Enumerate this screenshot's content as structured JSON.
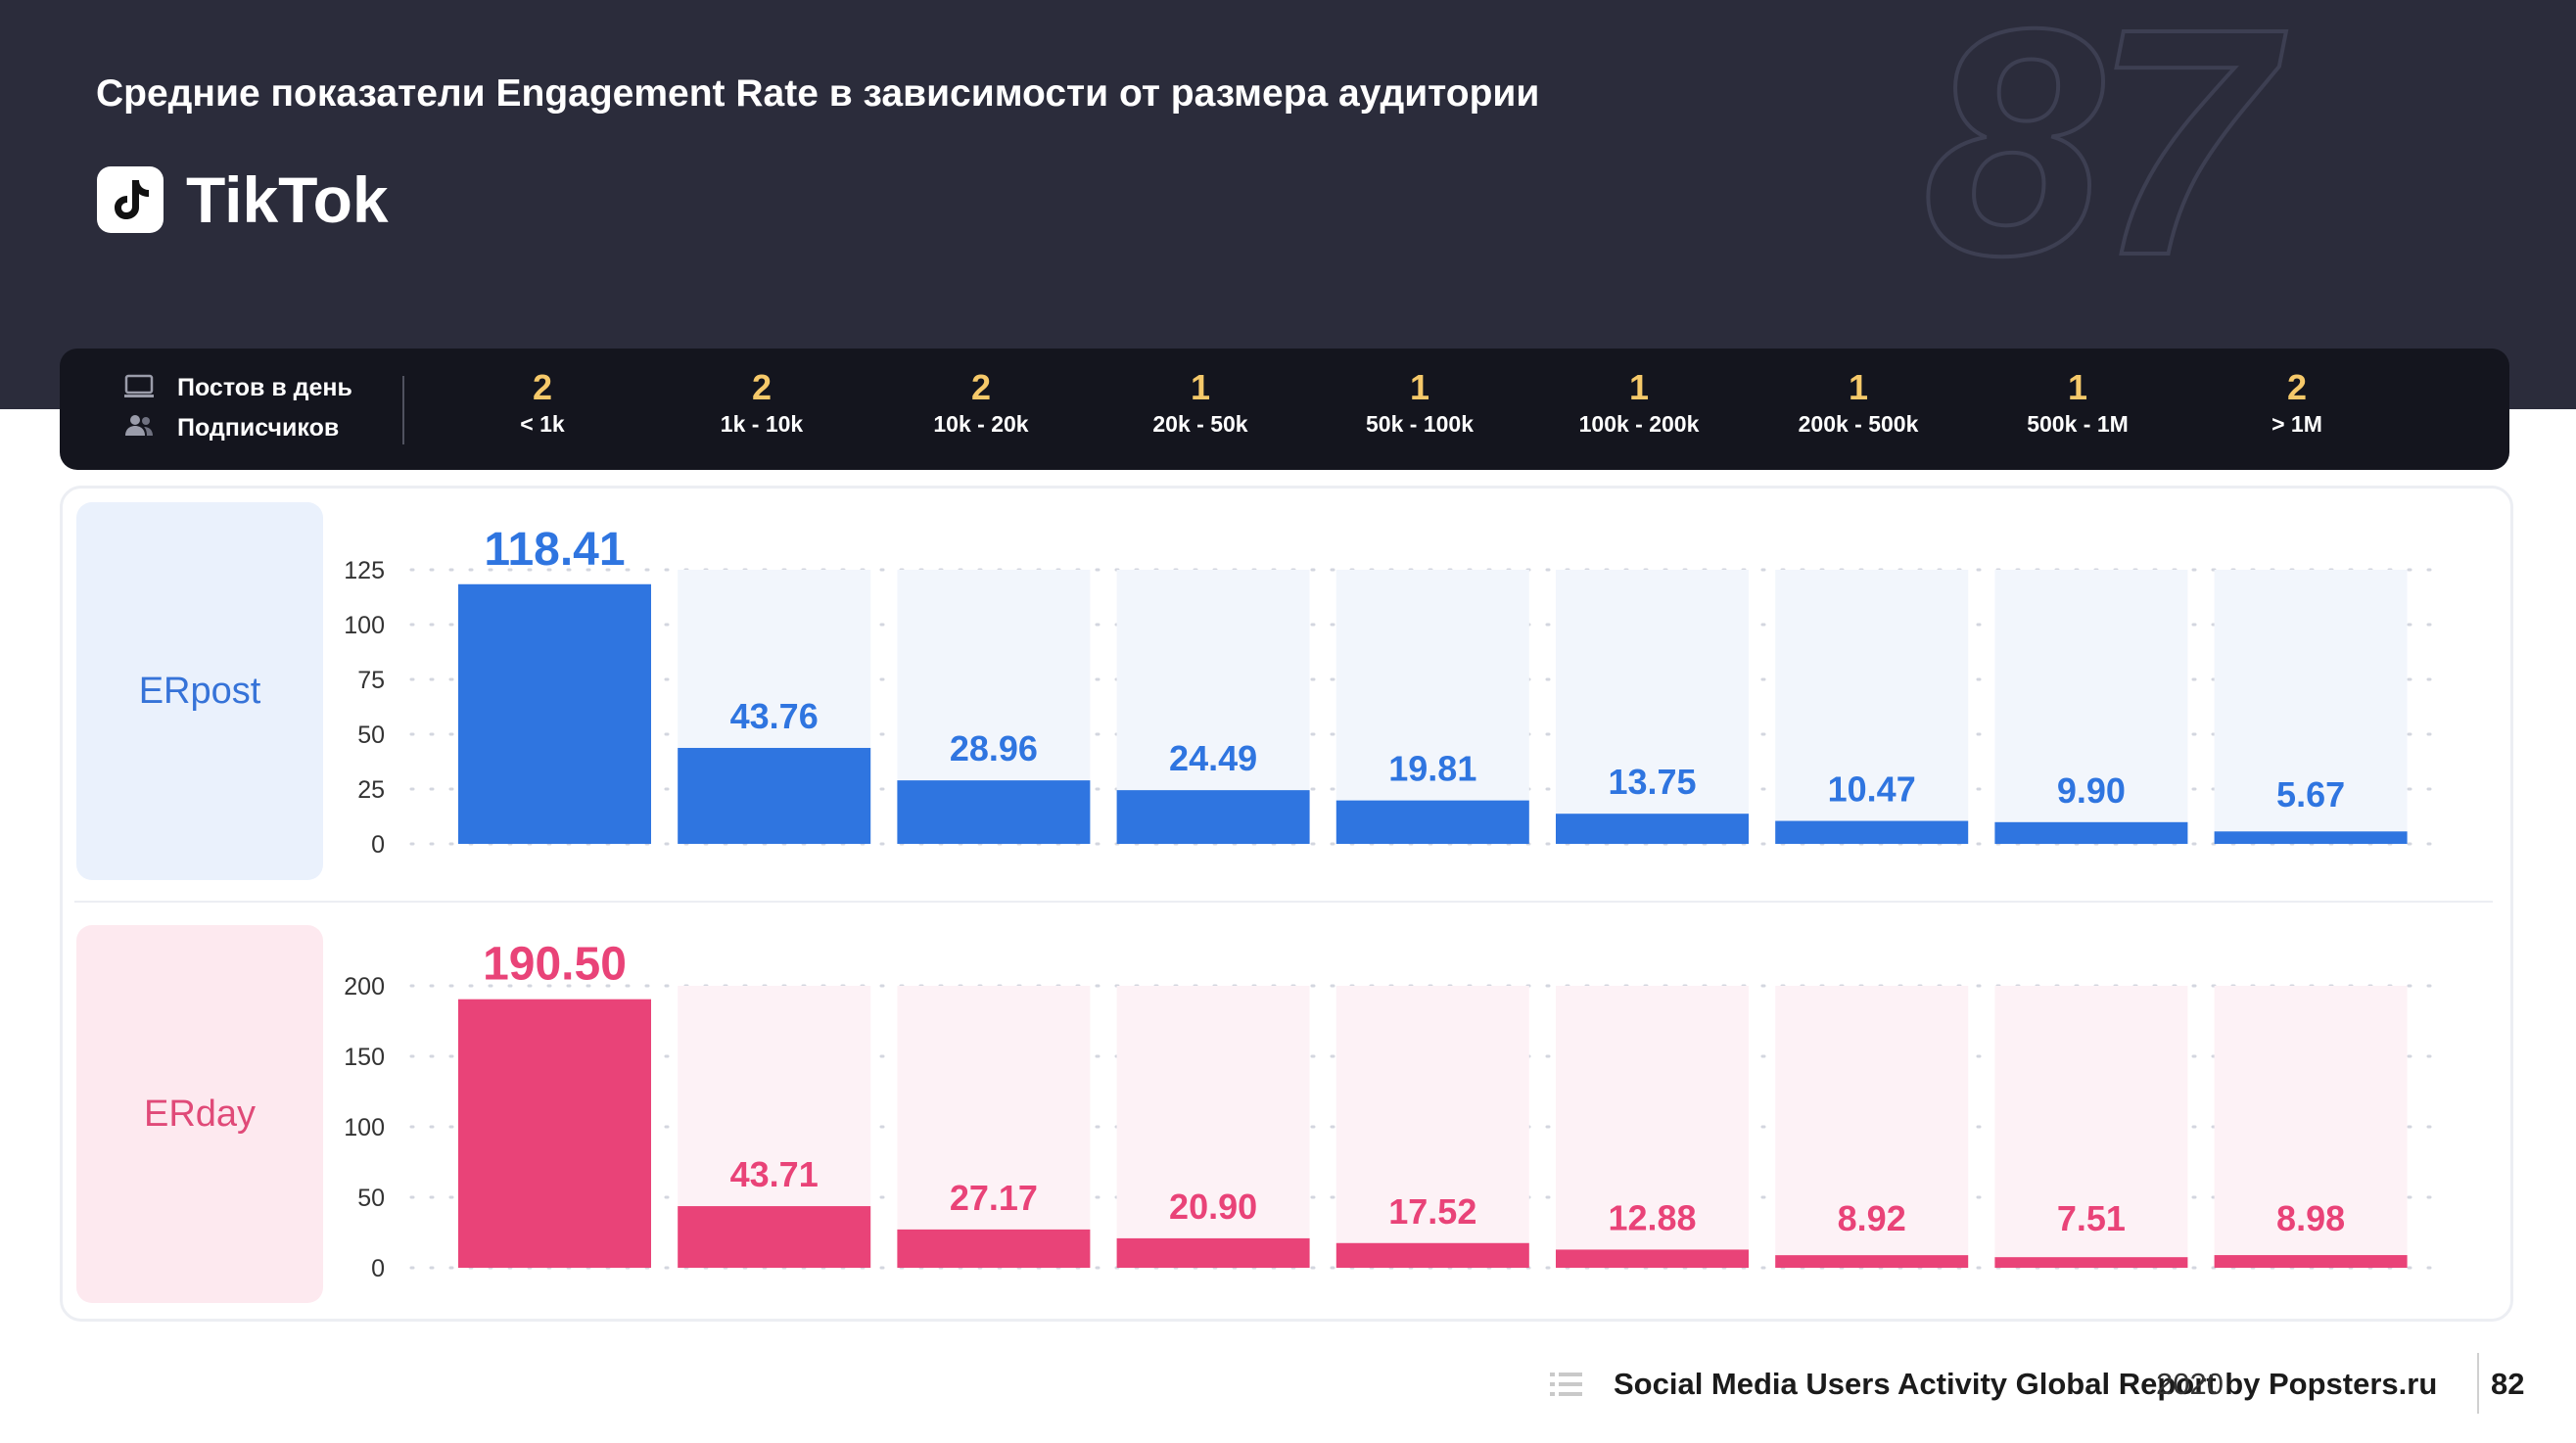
{
  "header": {
    "title": "Средние показатели Engagement Rate в зависимости от размера аудитории",
    "platform": "TikTok",
    "watermark": "87"
  },
  "stats_bar": {
    "posts_label": "Постов в день",
    "subscribers_label": "Подписчиков",
    "columns": [
      {
        "posts": "2",
        "range": "< 1k"
      },
      {
        "posts": "2",
        "range": "1k - 10k"
      },
      {
        "posts": "2",
        "range": "10k - 20k"
      },
      {
        "posts": "1",
        "range": "20k - 50k"
      },
      {
        "posts": "1",
        "range": "50k - 100k"
      },
      {
        "posts": "1",
        "range": "100k - 200k"
      },
      {
        "posts": "1",
        "range": "200k - 500k"
      },
      {
        "posts": "1",
        "range": "500k - 1M"
      },
      {
        "posts": "2",
        "range": "> 1M"
      }
    ]
  },
  "chart_data": [
    {
      "type": "bar",
      "name": "ERpost",
      "color": "#2f75e0",
      "background_color": "#f2f6fc",
      "categories": [
        "< 1k",
        "1k - 10k",
        "10k - 20k",
        "20k - 50k",
        "50k - 100k",
        "100k - 200k",
        "200k - 500k",
        "500k - 1M",
        "> 1M"
      ],
      "values": [
        118.41,
        43.76,
        28.96,
        24.49,
        19.81,
        13.75,
        10.47,
        9.9,
        5.67
      ],
      "value_labels": [
        "118.41",
        "43.76",
        "28.96",
        "24.49",
        "19.81",
        "13.75",
        "10.47",
        "9.90",
        "5.67"
      ],
      "yticks": [
        0,
        25,
        50,
        75,
        100,
        125
      ],
      "ylim": [
        0,
        125
      ],
      "grid": true
    },
    {
      "type": "bar",
      "name": "ERday",
      "color": "#e94378",
      "background_color": "#fdf2f6",
      "categories": [
        "< 1k",
        "1k - 10k",
        "10k - 20k",
        "20k - 50k",
        "50k - 100k",
        "100k - 200k",
        "200k - 500k",
        "500k - 1M",
        "> 1M"
      ],
      "values": [
        190.5,
        43.71,
        27.17,
        20.9,
        17.52,
        12.88,
        8.92,
        7.51,
        8.98
      ],
      "value_labels": [
        "190.50",
        "43.71",
        "27.17",
        "20.90",
        "17.52",
        "12.88",
        "8.92",
        "7.51",
        "8.98"
      ],
      "yticks": [
        0,
        50,
        100,
        150,
        200
      ],
      "ylim": [
        0,
        200
      ],
      "grid": true
    }
  ],
  "footer": {
    "report": "Social Media Users Activity Global Report by Popsters.ru",
    "year": "2020",
    "page": "82"
  }
}
